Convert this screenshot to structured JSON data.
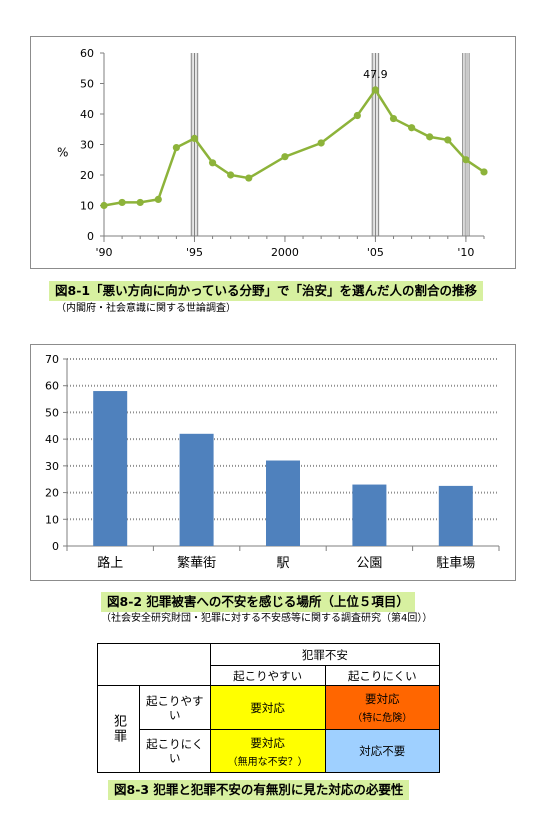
{
  "chart_data": [
    {
      "type": "line",
      "ylabel": "%",
      "ylim": [
        0,
        60
      ],
      "yticks": [
        0,
        10,
        20,
        30,
        40,
        50,
        60
      ],
      "xlim": [
        1990,
        2011
      ],
      "xticks": [
        {
          "value": 1990,
          "label": "'90"
        },
        {
          "value": 1995,
          "label": "'95"
        },
        {
          "value": 2000,
          "label": "2000"
        },
        {
          "value": 2005,
          "label": "'05"
        },
        {
          "value": 2010,
          "label": "'10"
        }
      ],
      "highlight_years": [
        1995,
        2005,
        2010
      ],
      "color": "#8db33a",
      "x": [
        1990,
        1991,
        1992,
        1993,
        1994,
        1995,
        1996,
        1997,
        1998,
        2000,
        2002,
        2004,
        2005,
        2006,
        2007,
        2008,
        2009,
        2010,
        2011
      ],
      "y": [
        10,
        11,
        11,
        12,
        29,
        32,
        24,
        20,
        19,
        26,
        30.5,
        39.5,
        47.9,
        38.5,
        35.5,
        32.5,
        31.5,
        25,
        21
      ],
      "annotation": {
        "x": 2005,
        "label": "47.9"
      },
      "caption": "図8-1「悪い方向に向かっている分野」で「治安」を選んだ人の割合の推移",
      "source": "（内閣府・社会意識に関する世論調査）"
    },
    {
      "type": "bar",
      "ylim": [
        0,
        70
      ],
      "yticks": [
        0,
        10,
        20,
        30,
        40,
        50,
        60,
        70
      ],
      "categories": [
        "路上",
        "繁華街",
        "駅",
        "公園",
        "駐車場"
      ],
      "values": [
        58,
        42,
        32,
        23,
        22.5
      ],
      "color": "#4f81bd",
      "caption": "図8-2 犯罪被害への不安を感じる場所（上位５項目）",
      "source": "（社会安全研究財団・犯罪に対する不安感等に関する調査研究（第4回））"
    }
  ],
  "matrix": {
    "col_header": "犯罪不安",
    "col_likely": "起こりやすい",
    "col_unlikely": "起こりにくい",
    "row_header": "犯罪",
    "row_likely": "起こりやすい",
    "row_unlikely": "起こりにくい",
    "cell_ll": "要対応",
    "cell_lu_main": "要対応",
    "cell_lu_sub": "（特に危険）",
    "cell_ul_main": "要対応",
    "cell_ul_sub": "（無用な不安？）",
    "cell_uu": "対応不要",
    "colors": {
      "yellow": "#ffff00",
      "orange": "#ff6600",
      "blue": "#9fd0ff"
    },
    "caption": "図8-3 犯罪と犯罪不安の有無別に見た対応の必要性"
  }
}
